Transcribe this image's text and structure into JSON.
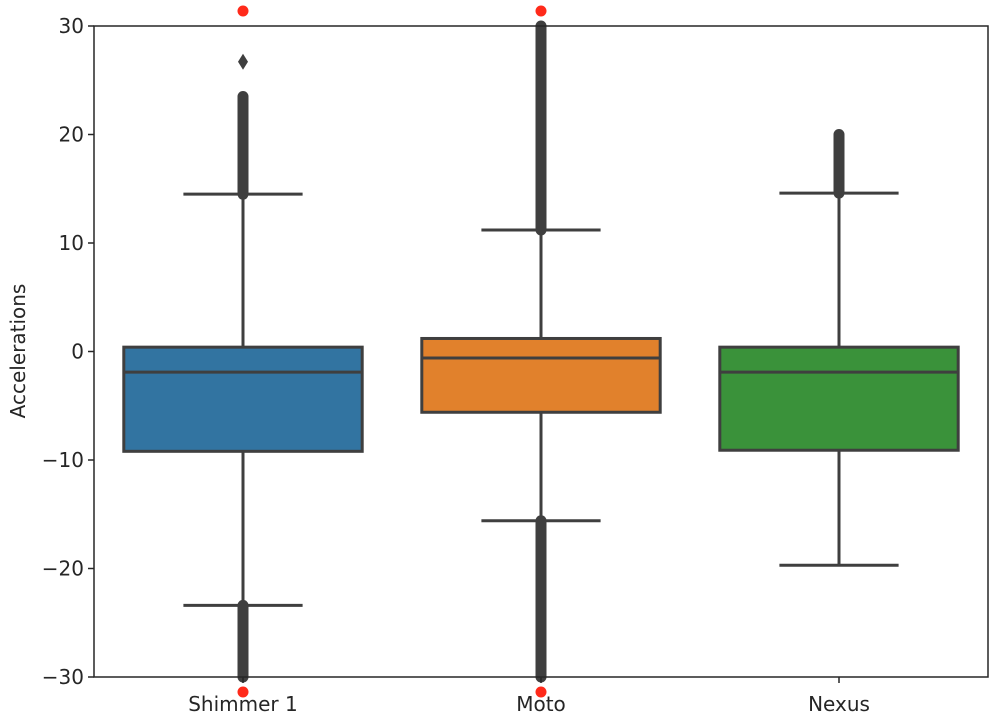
{
  "chart_data": {
    "type": "box",
    "title": "",
    "xlabel": "",
    "ylabel": "Accelerations",
    "ylim": [
      -30,
      30
    ],
    "yticks": [
      30,
      20,
      10,
      0,
      -10,
      -20,
      -30
    ],
    "ytick_labels": [
      "30",
      "20",
      "10",
      "0",
      "−10",
      "−20",
      "−30"
    ],
    "grid": false,
    "categories": [
      "Shimmer 1",
      "Moto",
      "Nexus"
    ],
    "boxes": [
      {
        "category": "Shimmer 1",
        "color": "#3274a1",
        "q1": -9.2,
        "median": -1.9,
        "q3": 0.4,
        "whisker_low": -23.4,
        "whisker_high": 14.5,
        "outliers_high": [
          14.5,
          23.5
        ],
        "outlier_extra_high": 26.7,
        "outliers_low": [
          -30,
          -23.4
        ]
      },
      {
        "category": "Moto",
        "color": "#e1812c",
        "q1": -5.6,
        "median": -0.6,
        "q3": 1.2,
        "whisker_low": -15.6,
        "whisker_high": 11.2,
        "outliers_high": [
          11.2,
          30
        ],
        "outlier_extra_high": null,
        "outliers_low": [
          -30,
          -15.6
        ]
      },
      {
        "category": "Nexus",
        "color": "#3a923a",
        "q1": -9.1,
        "median": -1.9,
        "q3": 0.4,
        "whisker_low": -19.7,
        "whisker_high": 14.6,
        "outliers_high": [
          14.6,
          20
        ],
        "outlier_extra_high": null,
        "outliers_low": null
      }
    ],
    "clipped_markers": [
      {
        "category": "Shimmer 1",
        "position": "top"
      },
      {
        "category": "Shimmer 1",
        "position": "bottom"
      },
      {
        "category": "Moto",
        "position": "top"
      },
      {
        "category": "Moto",
        "position": "bottom"
      }
    ],
    "marker_color": "#ff2a1a"
  }
}
